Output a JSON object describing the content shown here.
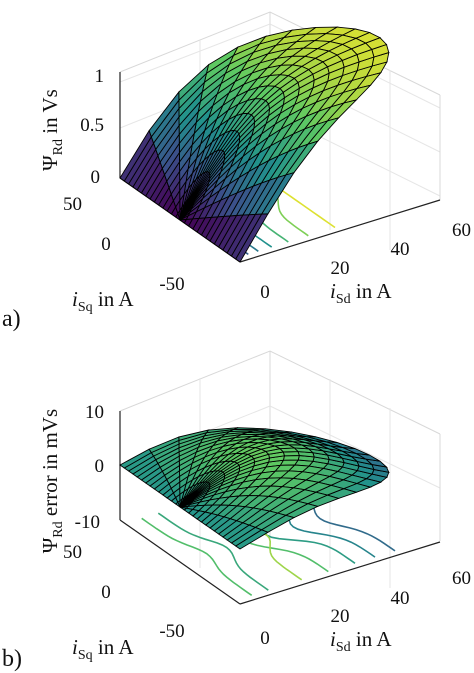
{
  "chart_data": [
    {
      "panel": "a)",
      "type": "surface",
      "zlabel_sym": "Ψ",
      "zlabel_sub": "Rd",
      "zlabel_rest": " in Vs",
      "xlabel_sym": "i",
      "xlabel_sub": "Sq",
      "xlabel_rest": " in A",
      "ylabel_sym": "i",
      "ylabel_sub": "Sd",
      "ylabel_rest": " in A",
      "xticks": [
        "50",
        "0",
        "-50"
      ],
      "yticks": [
        "0",
        "20",
        "40",
        "60"
      ],
      "zticks": [
        "0",
        "0.5",
        "1"
      ],
      "xlim": [
        -60,
        60
      ],
      "ylim": [
        0,
        60
      ],
      "zlim": [
        0,
        1.2
      ],
      "colormap": [
        "#440154",
        "#3b528b",
        "#21918c",
        "#5ec962",
        "#fde725"
      ]
    },
    {
      "panel": "b)",
      "type": "surface",
      "zlabel_sym": "Ψ",
      "zlabel_sub": "Rd",
      "zlabel_rest": " error in mVs",
      "xlabel_sym": "i",
      "xlabel_sub": "Sq",
      "xlabel_rest": " in A",
      "ylabel_sym": "i",
      "ylabel_sub": "Sd",
      "ylabel_rest": " in A",
      "xticks": [
        "50",
        "0",
        "-50"
      ],
      "yticks": [
        "0",
        "20",
        "40",
        "60"
      ],
      "zticks": [
        "-10",
        "0",
        "10"
      ],
      "xlim": [
        -60,
        60
      ],
      "ylim": [
        0,
        60
      ],
      "zlim": [
        -12,
        12
      ],
      "colormap": [
        "#440154",
        "#3b528b",
        "#21918c",
        "#5ec962",
        "#fde725"
      ]
    }
  ]
}
